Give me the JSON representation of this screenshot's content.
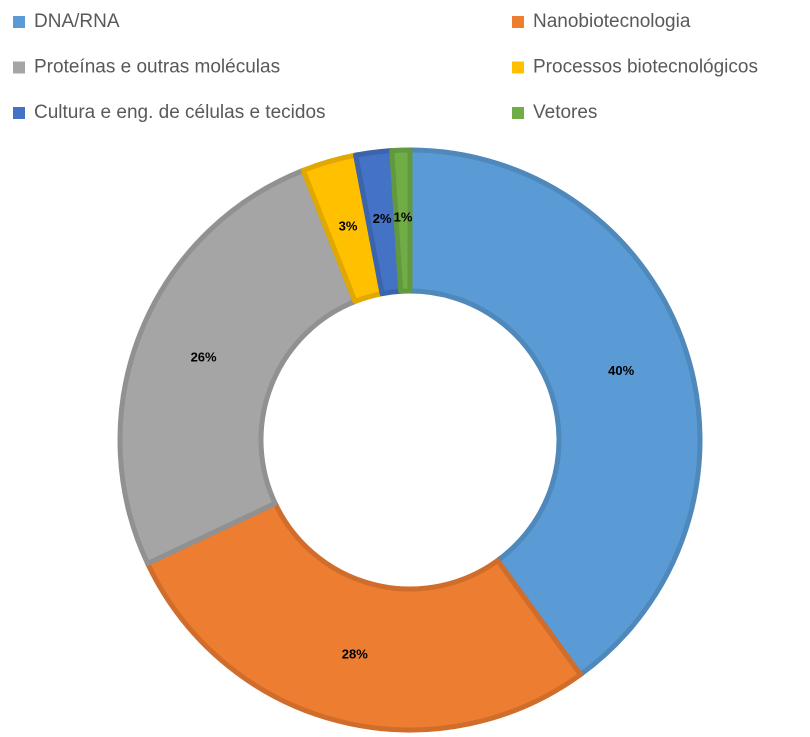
{
  "chart_data": {
    "type": "donut",
    "categories": [
      "DNA/RNA",
      "Nanobiotecnologia",
      "Proteínas e outras moléculas",
      "Processos biotecnológicos",
      "Cultura e eng. de células e tecidos",
      "Vetores"
    ],
    "values": [
      40,
      28,
      26,
      3,
      2,
      1
    ],
    "value_labels": [
      "40%",
      "28%",
      "26%",
      "3%",
      "2%",
      "1%"
    ],
    "colors": [
      "#5b9bd5",
      "#ed7d31",
      "#a5a5a5",
      "#ffc000",
      "#4472c4",
      "#70ad47"
    ],
    "legend": "top"
  }
}
